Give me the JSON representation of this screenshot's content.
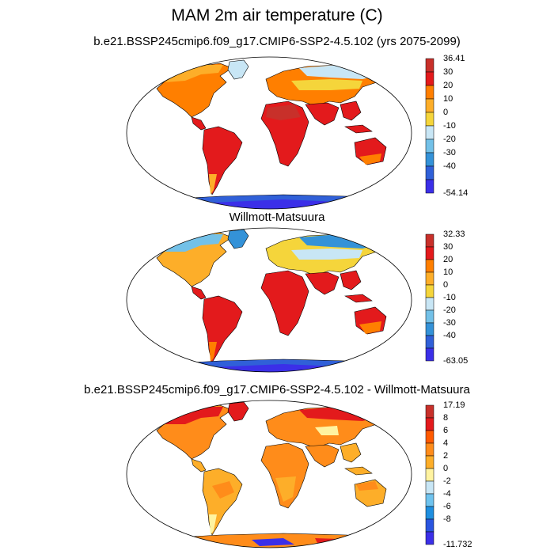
{
  "figure": {
    "title": "MAM 2m air temperature (C)"
  },
  "panels": [
    {
      "subtitle": "b.e21.BSSP245cmip6.f09_g17.CMIP6-SSP2-4.5.102 (yrs 2075-2099)",
      "colorbar": {
        "labels": [
          "36.41",
          "30",
          "20",
          "10",
          "0",
          "-10",
          "-20",
          "-30",
          "-40",
          "-54.14"
        ],
        "colors": [
          "#c8302a",
          "#e31a1c",
          "#ff7f00",
          "#fdae29",
          "#f5d53b",
          "#c8e6f5",
          "#73c1e8",
          "#3492d8",
          "#3060d8",
          "#3b2fe8"
        ]
      }
    },
    {
      "subtitle": "Willmott-Matsuura",
      "colorbar": {
        "labels": [
          "32.33",
          "30",
          "20",
          "10",
          "0",
          "-10",
          "-20",
          "-30",
          "-40",
          "-63.05"
        ],
        "colors": [
          "#c8302a",
          "#e31a1c",
          "#ff7f00",
          "#fdae29",
          "#f5d53b",
          "#c8e6f5",
          "#73c1e8",
          "#3492d8",
          "#3060d8",
          "#3b2fe8"
        ]
      }
    },
    {
      "subtitle": "b.e21.BSSP245cmip6.f09_g17.CMIP6-SSP2-4.5.102 - Willmott-Matsuura",
      "colorbar": {
        "labels": [
          "17.19",
          "8",
          "6",
          "4",
          "2",
          "0",
          "-2",
          "-4",
          "-6",
          "-8",
          "-11.732"
        ],
        "colors": [
          "#c8302a",
          "#e31a1c",
          "#ff5a00",
          "#ff8c1a",
          "#fdae29",
          "#fff3a0",
          "#c8e6f5",
          "#6fc3ee",
          "#1f8fe0",
          "#2a55e0",
          "#3b2fe8"
        ]
      }
    }
  ]
}
